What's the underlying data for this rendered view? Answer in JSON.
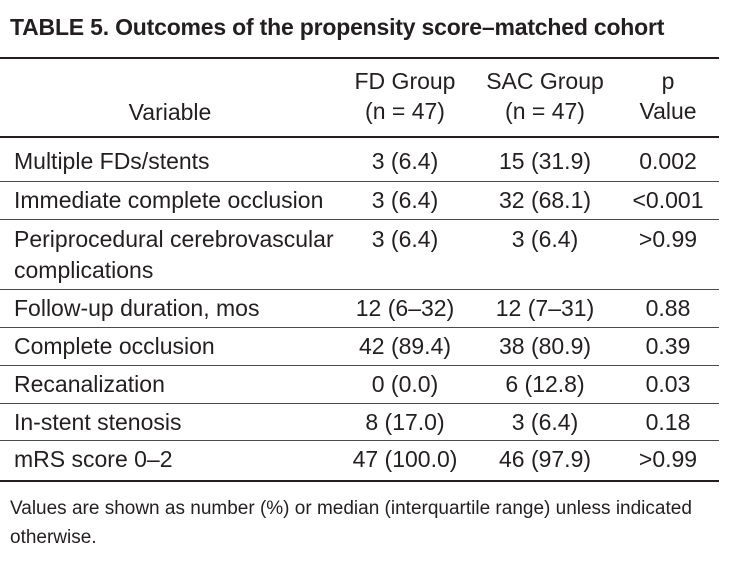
{
  "title": "TABLE 5. Outcomes of the propensity score–matched cohort",
  "headers": {
    "variable": "Variable",
    "fd_line1": "FD Group",
    "fd_line2": "(n = 47)",
    "sac_line1": "SAC Group",
    "sac_line2": "(n = 47)",
    "p_line1": "p",
    "p_line2": "Value"
  },
  "rows": [
    {
      "variable": "Multiple FDs/stents",
      "variable_line2": "",
      "fd": "3 (6.4)",
      "sac": "15 (31.9)",
      "p": "0.002"
    },
    {
      "variable": "Immediate complete occlusion",
      "variable_line2": "",
      "fd": "3 (6.4)",
      "sac": "32 (68.1)",
      "p": "<0.001"
    },
    {
      "variable": "Periprocedural cerebrovascular",
      "variable_line2": "complications",
      "fd": "3 (6.4)",
      "sac": "3 (6.4)",
      "p": ">0.99"
    },
    {
      "variable": "Follow-up duration, mos",
      "variable_line2": "",
      "fd": "12 (6–32)",
      "sac": "12 (7–31)",
      "p": "0.88"
    },
    {
      "variable": "Complete occlusion",
      "variable_line2": "",
      "fd": "42 (89.4)",
      "sac": "38 (80.9)",
      "p": "0.39"
    },
    {
      "variable": "Recanalization",
      "variable_line2": "",
      "fd": "0 (0.0)",
      "sac": "6 (12.8)",
      "p": "0.03"
    },
    {
      "variable": "In-stent stenosis",
      "variable_line2": "",
      "fd": "8 (17.0)",
      "sac": "3 (6.4)",
      "p": "0.18"
    },
    {
      "variable": "mRS score 0–2",
      "variable_line2": "",
      "fd": "47 (100.0)",
      "sac": "46 (97.9)",
      "p": ">0.99"
    }
  ],
  "footnote": "Values are shown as number (%) or median (interquartile range) unless indicated otherwise."
}
